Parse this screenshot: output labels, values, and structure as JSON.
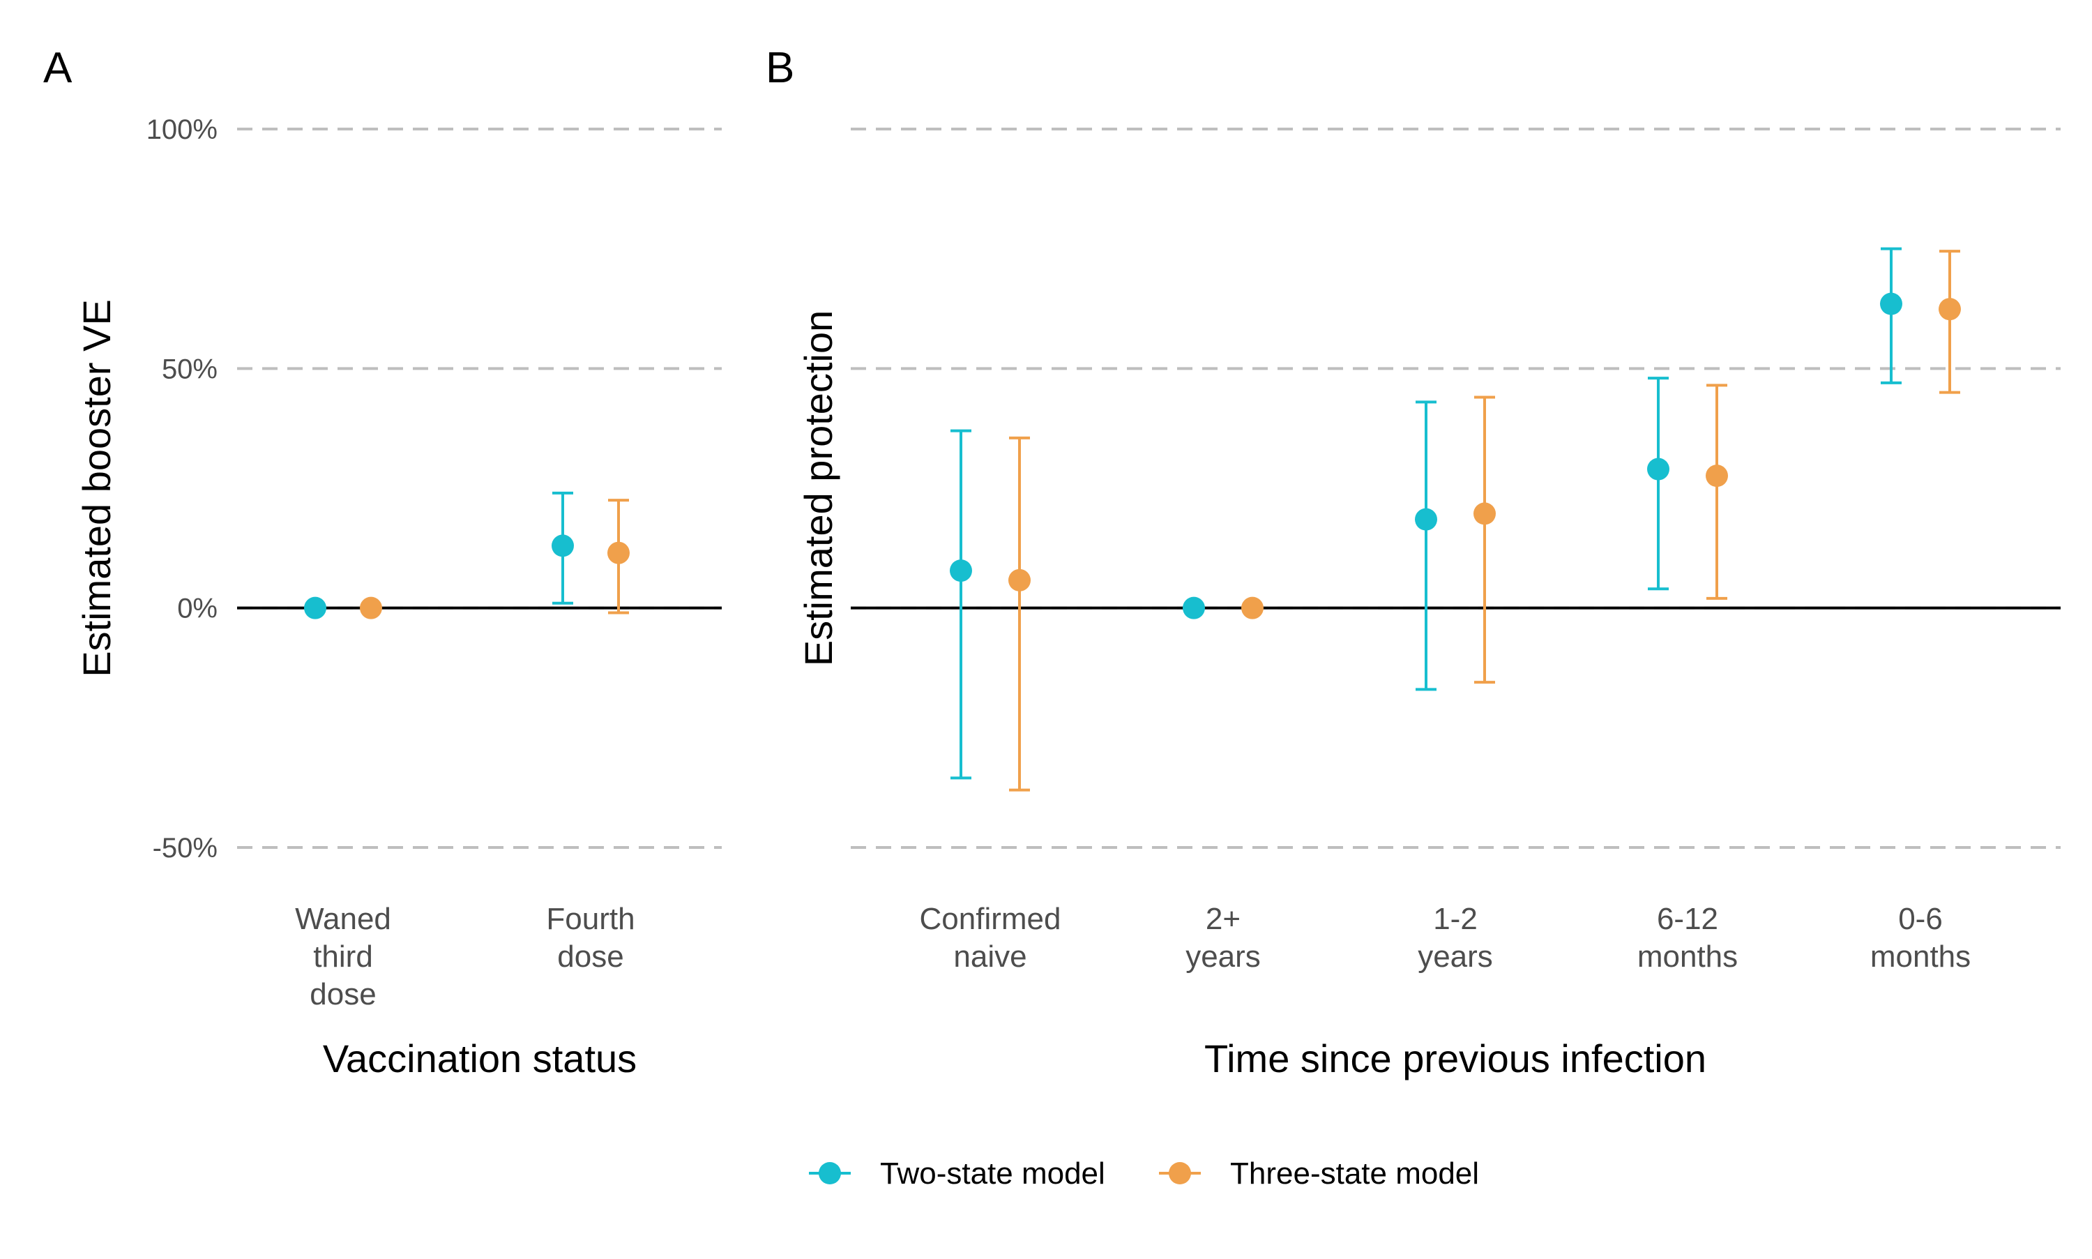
{
  "chart_data": [
    {
      "type": "scatter",
      "panel_label": "A",
      "ylabel": "Estimated booster VE",
      "xlabel": "Vaccination status",
      "ylim": [
        -0.5,
        1.0
      ],
      "y_ticks": [
        {
          "value": 1.0,
          "label": "100%"
        },
        {
          "value": 0.5,
          "label": "50%"
        },
        {
          "value": 0.0,
          "label": "0%"
        },
        {
          "value": -0.5,
          "label": "-50%"
        }
      ],
      "grid": "dashed horizontal",
      "categories": [
        [
          "Waned",
          "third",
          "dose"
        ],
        [
          "Fourth",
          "dose"
        ]
      ],
      "series": [
        {
          "name": "Two-state model",
          "color": "#17becf",
          "values": [
            0.0,
            0.13
          ],
          "lower": [
            null,
            0.01
          ],
          "upper": [
            null,
            0.24
          ]
        },
        {
          "name": "Three-state model",
          "color": "#f0a04b",
          "values": [
            0.0,
            0.115
          ],
          "lower": [
            null,
            -0.01
          ],
          "upper": [
            null,
            0.225
          ]
        }
      ]
    },
    {
      "type": "scatter",
      "panel_label": "B",
      "ylabel": "Estimated protection",
      "xlabel": "Time since previous infection",
      "ylim": [
        -0.5,
        1.0
      ],
      "grid": "dashed horizontal",
      "categories": [
        [
          "Confirmed",
          "naive"
        ],
        [
          "2+",
          "years"
        ],
        [
          "1-2",
          "years"
        ],
        [
          "6-12",
          "months"
        ],
        [
          "0-6",
          "months"
        ]
      ],
      "series": [
        {
          "name": "Two-state model",
          "color": "#17becf",
          "values": [
            0.078,
            0.0,
            0.185,
            0.29,
            0.635
          ],
          "lower": [
            -0.355,
            null,
            -0.17,
            0.04,
            0.47
          ],
          "upper": [
            0.37,
            null,
            0.43,
            0.48,
            0.75
          ]
        },
        {
          "name": "Three-state model",
          "color": "#f0a04b",
          "values": [
            0.058,
            0.0,
            0.197,
            0.276,
            0.624
          ],
          "lower": [
            -0.38,
            null,
            -0.155,
            0.02,
            0.45
          ],
          "upper": [
            0.355,
            null,
            0.44,
            0.465,
            0.745
          ]
        }
      ]
    }
  ],
  "legend": {
    "position": "bottom",
    "items": [
      {
        "label": "Two-state model",
        "color": "#17becf"
      },
      {
        "label": "Three-state model",
        "color": "#f0a04b"
      }
    ]
  },
  "colors": {
    "grid": "#bebebe",
    "zero_line": "#000000",
    "tick_text": "#4d4d4d"
  }
}
